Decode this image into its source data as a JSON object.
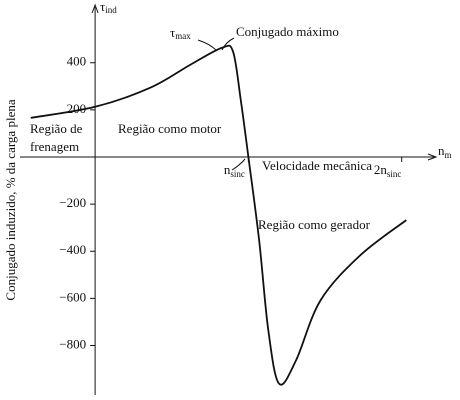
{
  "chart_data": {
    "type": "line",
    "y_axis_label": "Conjugado induzido, % da carga plena",
    "y_symbol": {
      "main": "τ",
      "sub": "ind"
    },
    "x_symbol": {
      "main": "n",
      "sub": "m"
    },
    "x": [
      -0.42,
      0,
      0.36,
      0.62,
      0.83,
      0.9,
      0.95,
      1.0,
      1.07,
      1.13,
      1.2,
      1.31,
      1.47,
      1.73,
      2.03
    ],
    "series": [
      {
        "values": [
          166,
          213,
          294,
          391,
          464,
          447,
          243,
          0,
          -353,
          -736,
          -962,
          -864,
          -609,
          -417,
          -268
        ],
        "color": "#111111"
      }
    ],
    "xlim": [
      -0.49,
      2.25
    ],
    "ylim": [
      -1010,
      645
    ],
    "xticks": [
      {
        "value": 1,
        "label": "n",
        "subscript": "sinc"
      },
      {
        "value": 2,
        "label": "2n",
        "subscript": "sinc"
      }
    ],
    "yticks": [
      {
        "value": -800,
        "label": "−800"
      },
      {
        "value": -600,
        "label": "−600"
      },
      {
        "value": -400,
        "label": "−400"
      },
      {
        "value": -200,
        "label": "−200"
      },
      200,
      400
    ],
    "annotations": {
      "tau_max": {
        "main": "τ",
        "sub": "max"
      },
      "max_torque": "Conjugado máximo",
      "braking_1": "Região de",
      "braking_2": "frenagem",
      "motor": "Região como motor",
      "speed": "Velocidade mecânica",
      "generator": "Região como gerador"
    }
  }
}
